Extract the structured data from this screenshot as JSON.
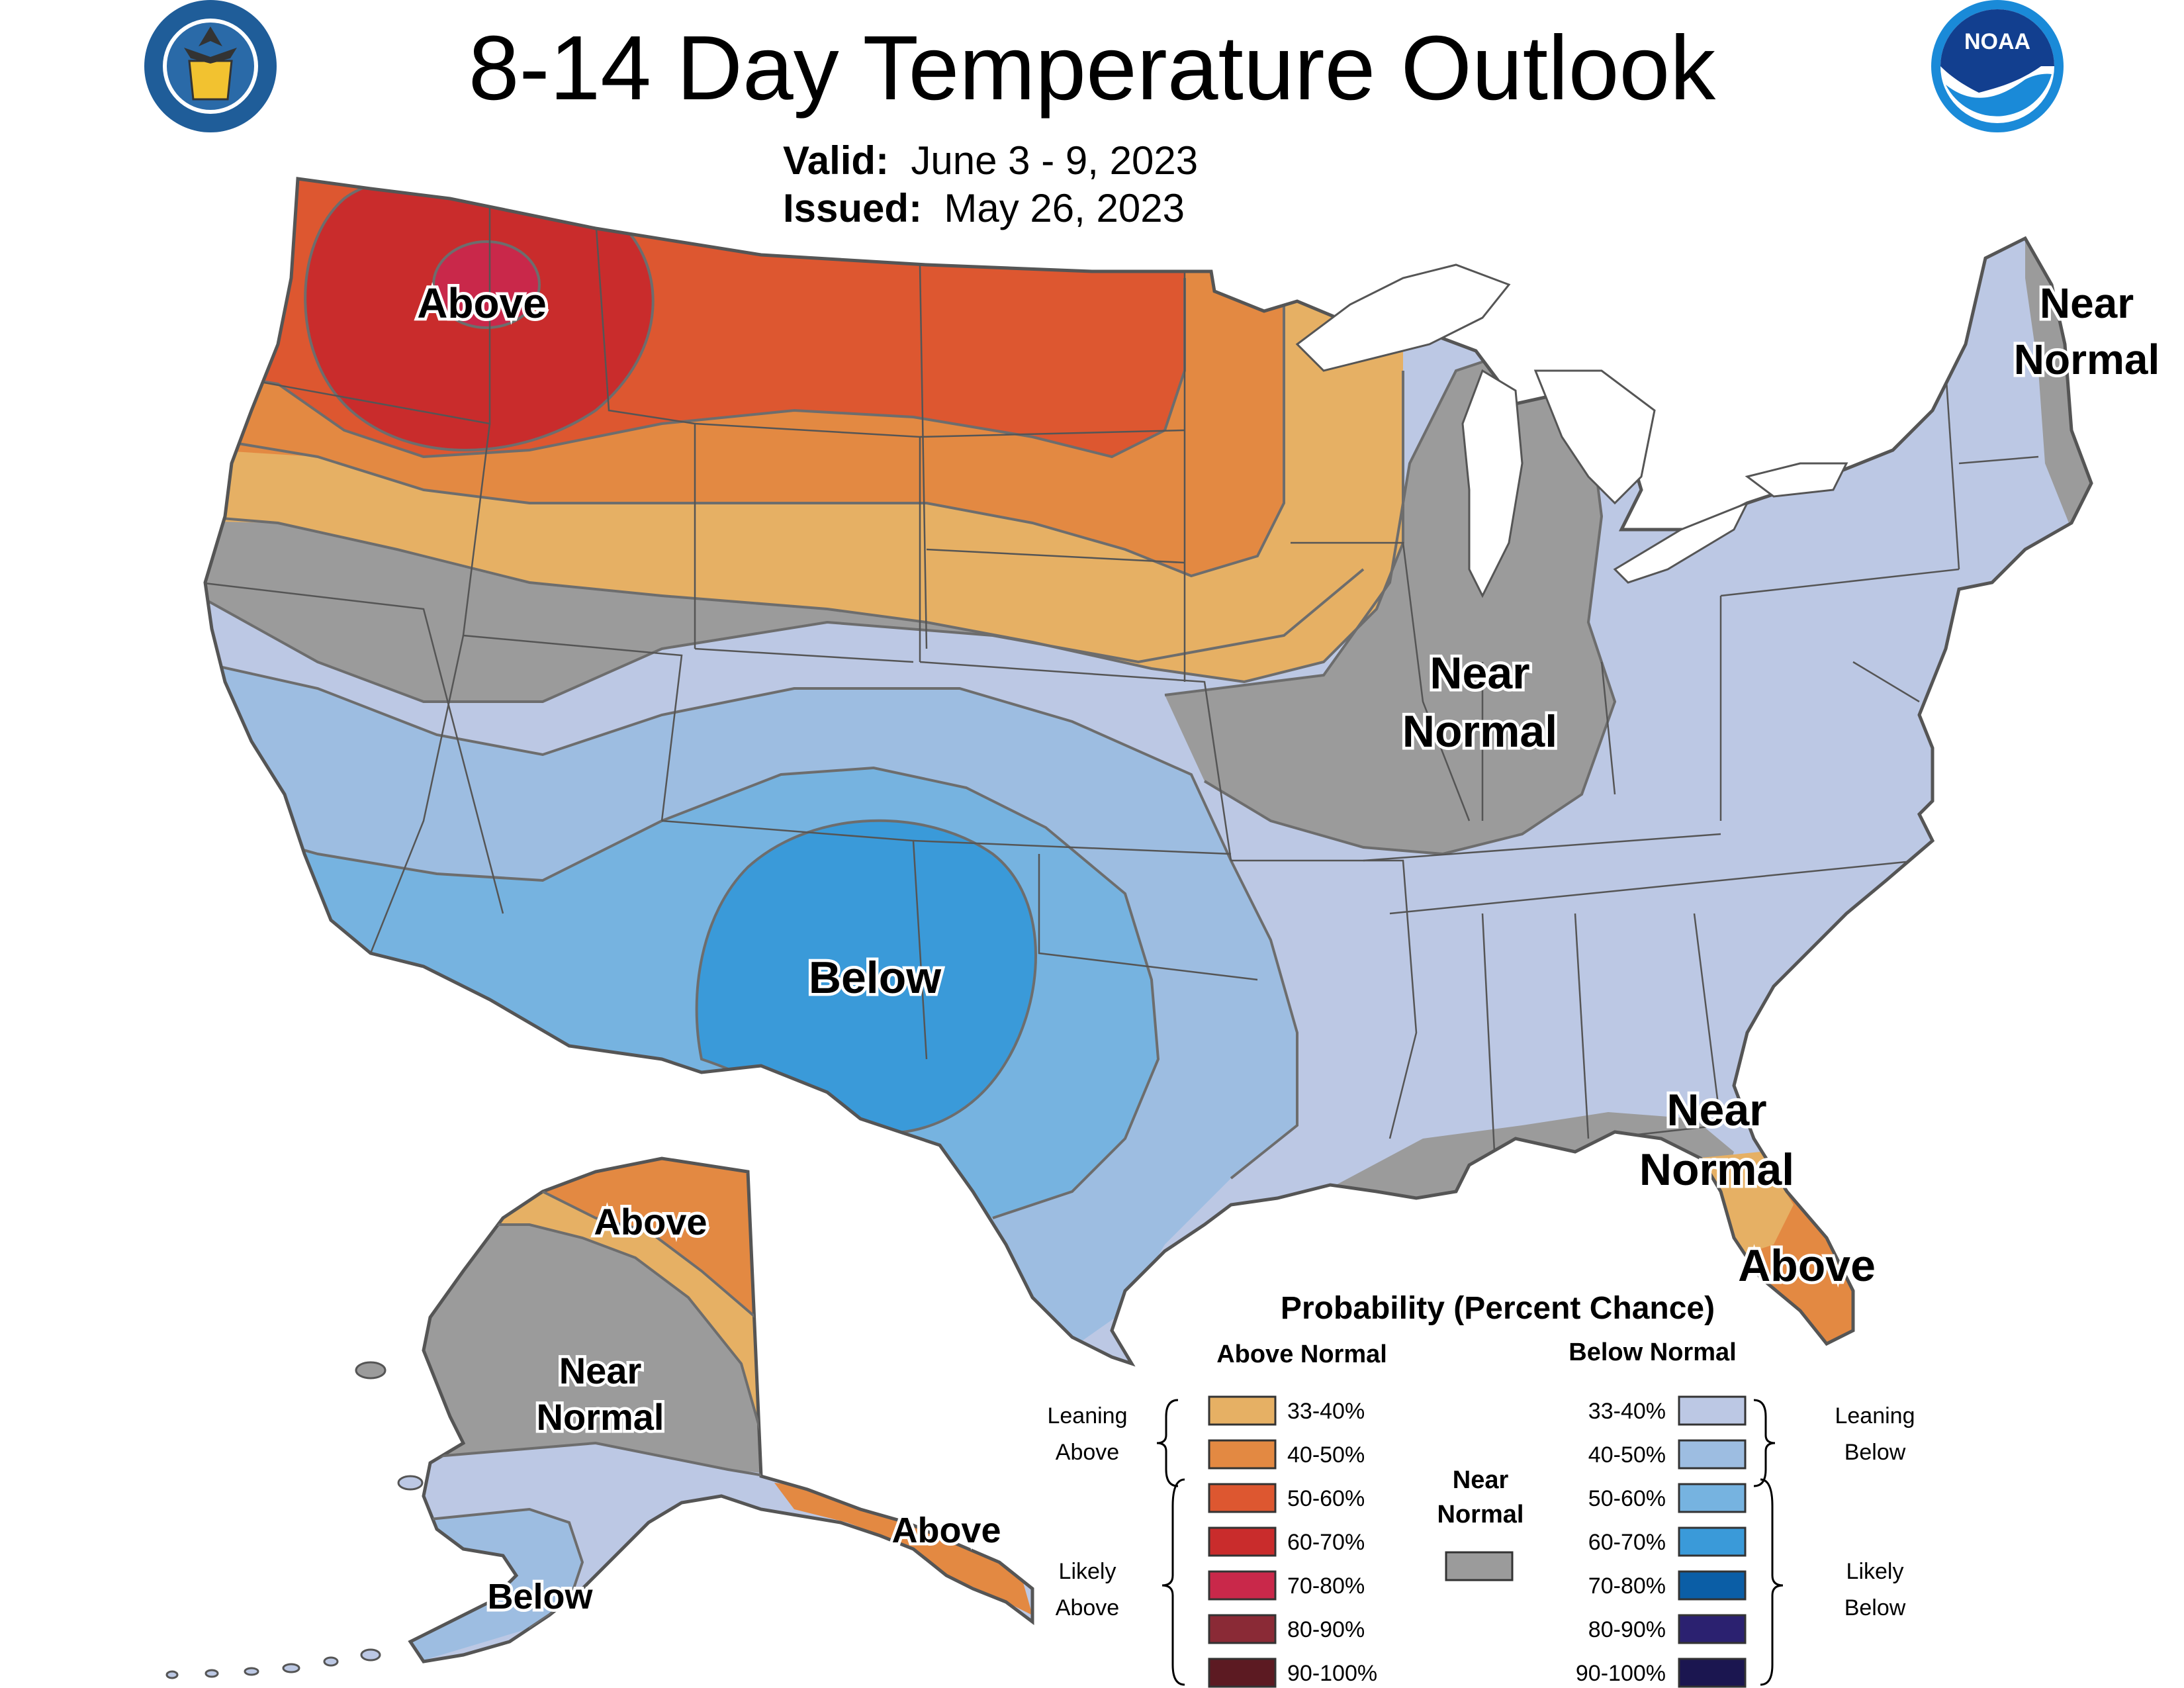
{
  "header": {
    "title": "8-14 Day Temperature Outlook",
    "valid_label": "Valid:",
    "valid_value": "June 3 - 9, 2023",
    "issued_label": "Issued:",
    "issued_value": "May 26, 2023"
  },
  "logos": {
    "doc_seal": "DEPARTMENT OF COMMERCE · UNITED STATES OF AMERICA",
    "noaa": "NOAA"
  },
  "map_labels": {
    "conus_above": "Above",
    "conus_below": "Below",
    "conus_near_ne_1": "Near",
    "conus_near_ne_2": "Normal",
    "conus_near_mw_1": "Near",
    "conus_near_mw_2": "Normal",
    "conus_near_se_1": "Near",
    "conus_near_se_2": "Normal",
    "florida_above": "Above",
    "ak_above_north": "Above",
    "ak_near_1": "Near",
    "ak_near_2": "Normal",
    "ak_below": "Below",
    "ak_above_panhandle": "Above"
  },
  "legend": {
    "title": "Probability (Percent Chance)",
    "above_header": "Above Normal",
    "below_header": "Below Normal",
    "leaning_above_1": "Leaning",
    "leaning_above_2": "Above",
    "likely_above_1": "Likely",
    "likely_above_2": "Above",
    "leaning_below_1": "Leaning",
    "leaning_below_2": "Below",
    "likely_below_1": "Likely",
    "likely_below_2": "Below",
    "near_1": "Near",
    "near_2": "Normal",
    "near_color": "#9b9b9b",
    "above": [
      {
        "range": "33-40%",
        "color": "#e6b064"
      },
      {
        "range": "40-50%",
        "color": "#e38942"
      },
      {
        "range": "50-60%",
        "color": "#dd5730"
      },
      {
        "range": "60-70%",
        "color": "#c92c2c"
      },
      {
        "range": "70-80%",
        "color": "#c9284a"
      },
      {
        "range": "80-90%",
        "color": "#8a2a36"
      },
      {
        "range": "90-100%",
        "color": "#5c1a22"
      }
    ],
    "below": [
      {
        "range": "33-40%",
        "color": "#bcc8e4"
      },
      {
        "range": "40-50%",
        "color": "#9dbde1"
      },
      {
        "range": "50-60%",
        "color": "#76b3e0"
      },
      {
        "range": "60-70%",
        "color": "#3a9ad9"
      },
      {
        "range": "70-80%",
        "color": "#0b5ea6"
      },
      {
        "range": "80-90%",
        "color": "#2b2170"
      },
      {
        "range": "90-100%",
        "color": "#1b1650"
      }
    ]
  },
  "colors": {
    "above_33_40": "#e6b064",
    "above_40_50": "#e38942",
    "above_50_60": "#dd5730",
    "above_60_70": "#c92c2c",
    "above_70_80": "#c9284a",
    "near_normal": "#9b9b9b",
    "below_33_40": "#bcc8e4",
    "below_40_50": "#9dbde1",
    "below_50_60": "#76b3e0",
    "below_60_70": "#3a9ad9",
    "state_lines": "#555555"
  }
}
